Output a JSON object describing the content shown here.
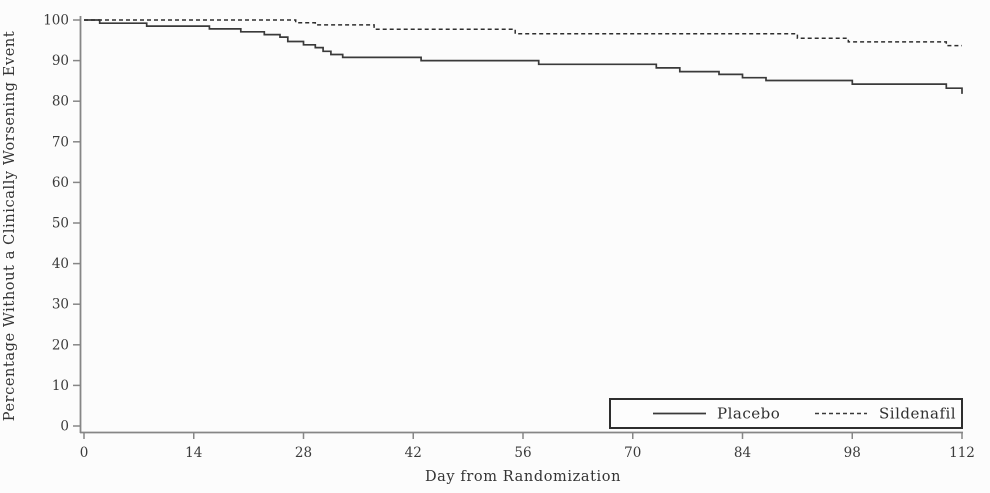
{
  "figure": {
    "background_color": "#fcfcfc",
    "axis_line_color": "#868686",
    "curve_color": "#3a3a3a",
    "text_color": "#3b3b3b"
  },
  "legend": {
    "entries": [
      {
        "label": "Placebo",
        "line_style": "solid"
      },
      {
        "label": "Sildenafil",
        "line_style": "dashed"
      }
    ]
  },
  "chart_data": {
    "type": "line",
    "subtype": "kaplan-meier-step",
    "title": "",
    "xlabel": "Day from Randomization",
    "ylabel": "Percentage Without a Clinically Worsening Event",
    "xlim": [
      0,
      112
    ],
    "ylim": [
      0,
      100
    ],
    "xticks": [
      0,
      14,
      28,
      42,
      56,
      70,
      84,
      98,
      112
    ],
    "yticks": [
      0,
      10,
      20,
      30,
      40,
      50,
      60,
      70,
      80,
      90,
      100
    ],
    "grid": false,
    "legend_position": "bottom-right-inside",
    "series": [
      {
        "name": "Placebo",
        "style": "solid",
        "color": "#3a3a3a",
        "points": [
          [
            0,
            100
          ],
          [
            2,
            99.2
          ],
          [
            8,
            98.5
          ],
          [
            16,
            97.8
          ],
          [
            20,
            97.1
          ],
          [
            23,
            96.4
          ],
          [
            25,
            95.8
          ],
          [
            26,
            94.7
          ],
          [
            28,
            93.9
          ],
          [
            29.5,
            93.2
          ],
          [
            30.5,
            92.3
          ],
          [
            31.5,
            91.5
          ],
          [
            33,
            90.8
          ],
          [
            43,
            90.0
          ],
          [
            58,
            89.1
          ],
          [
            73,
            88.2
          ],
          [
            76,
            87.3
          ],
          [
            81,
            86.6
          ],
          [
            84,
            85.8
          ],
          [
            87,
            85.1
          ],
          [
            98,
            84.2
          ],
          [
            110,
            83.2
          ],
          [
            112,
            81.8
          ]
        ]
      },
      {
        "name": "Sildenafil",
        "style": "dashed",
        "color": "#2e2e2e",
        "points": [
          [
            0,
            100
          ],
          [
            27,
            99.3
          ],
          [
            29.5,
            98.8
          ],
          [
            37,
            97.7
          ],
          [
            55,
            96.6
          ],
          [
            91,
            95.5
          ],
          [
            97.5,
            94.6
          ],
          [
            110,
            93.7
          ],
          [
            112,
            93.7
          ]
        ]
      }
    ]
  }
}
